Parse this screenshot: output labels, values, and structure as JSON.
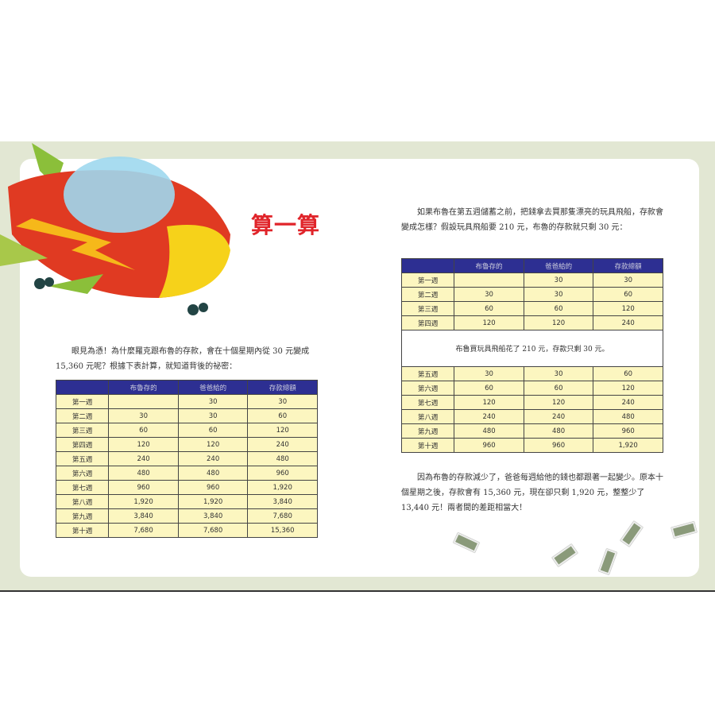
{
  "title": "算一算",
  "left": {
    "intro": "眼見為憑！為什麼羅克跟布魯的存款，會在十個星期內從 30 元變成 15,360 元呢？根據下表計算，就知道背後的祕密：",
    "headers": [
      "",
      "布魯存的",
      "爸爸給的",
      "存款總額"
    ],
    "rows": [
      [
        "第一週",
        "",
        "30",
        "30"
      ],
      [
        "第二週",
        "30",
        "30",
        "60"
      ],
      [
        "第三週",
        "60",
        "60",
        "120"
      ],
      [
        "第四週",
        "120",
        "120",
        "240"
      ],
      [
        "第五週",
        "240",
        "240",
        "480"
      ],
      [
        "第六週",
        "480",
        "480",
        "960"
      ],
      [
        "第七週",
        "960",
        "960",
        "1,920"
      ],
      [
        "第八週",
        "1,920",
        "1,920",
        "3,840"
      ],
      [
        "第九週",
        "3,840",
        "3,840",
        "7,680"
      ],
      [
        "第十週",
        "7,680",
        "7,680",
        "15,360"
      ]
    ]
  },
  "right": {
    "intro": "如果布魯在第五週儲蓄之前，把錢拿去買那隻漂亮的玩具飛船，存款會變成怎樣？假設玩具飛船要 210 元，布魯的存款就只剩 30 元：",
    "headers": [
      "",
      "布魯存的",
      "爸爸給的",
      "存款總額"
    ],
    "rows_before": [
      [
        "第一週",
        "",
        "30",
        "30"
      ],
      [
        "第二週",
        "30",
        "30",
        "60"
      ],
      [
        "第三週",
        "60",
        "60",
        "120"
      ],
      [
        "第四週",
        "120",
        "120",
        "240"
      ]
    ],
    "note": "布魯買玩具飛船花了 210 元，存款只剩 30 元。",
    "rows_after": [
      [
        "第五週",
        "30",
        "30",
        "60"
      ],
      [
        "第六週",
        "60",
        "60",
        "120"
      ],
      [
        "第七週",
        "120",
        "120",
        "240"
      ],
      [
        "第八週",
        "240",
        "240",
        "480"
      ],
      [
        "第九週",
        "480",
        "480",
        "960"
      ],
      [
        "第十週",
        "960",
        "960",
        "1,920"
      ]
    ],
    "conclusion": "因為布魯的存款減少了，爸爸每週給他的錢也都跟著一起變少。原本十個星期之後，存款會有 15,360 元，現在卻只剩 1,920 元，整整少了 13,440 元！兩者間的差距相當大！"
  },
  "colors": {
    "header": "#2d2f92",
    "row": "#fcf6c0",
    "title": "#e0242a",
    "band": "#e2e7d3"
  }
}
